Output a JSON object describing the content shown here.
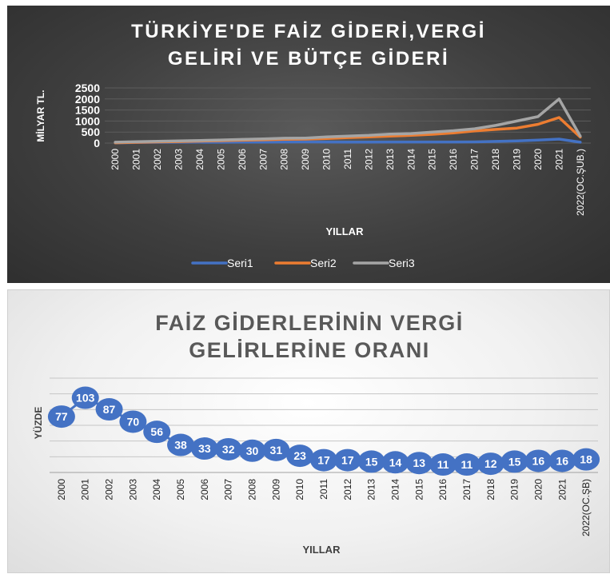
{
  "chart_data": [
    {
      "type": "line",
      "title_lines": [
        "TÜRKİYE'DE FAİZ GİDERİ,VERGİ",
        "GELİRİ VE BÜTÇE GİDERİ"
      ],
      "xlabel": "YILLAR",
      "ylabel": "MİLYAR TL.",
      "ylim": [
        0,
        2500
      ],
      "yticks": [
        "0",
        "500",
        "1000",
        "1500",
        "2000",
        "2500"
      ],
      "categories": [
        "2000",
        "2001",
        "2002",
        "2003",
        "2004",
        "2005",
        "2006",
        "2007",
        "2008",
        "2009",
        "2010",
        "2011",
        "2012",
        "2013",
        "2014",
        "2015",
        "2016",
        "2017",
        "2018",
        "2019",
        "2020",
        "2021",
        "2022(OC.ŞUB.)"
      ],
      "legend_position": "bottom",
      "series": [
        {
          "name": "Seri1",
          "color": "#4472c4",
          "values": [
            10,
            25,
            35,
            40,
            45,
            40,
            45,
            48,
            50,
            55,
            50,
            45,
            48,
            50,
            50,
            52,
            50,
            55,
            75,
            100,
            135,
            180,
            40
          ]
        },
        {
          "name": "Seri2",
          "color": "#ed7d31",
          "values": [
            15,
            35,
            55,
            70,
            90,
            110,
            130,
            150,
            170,
            180,
            210,
            250,
            280,
            320,
            350,
            400,
            460,
            550,
            620,
            680,
            850,
            1160,
            270
          ]
        },
        {
          "name": "Seri3",
          "color": "#a5a5a5",
          "values": [
            40,
            60,
            80,
            100,
            120,
            140,
            165,
            190,
            220,
            230,
            280,
            320,
            350,
            410,
            430,
            500,
            560,
            650,
            800,
            1000,
            1200,
            2000,
            320
          ]
        }
      ]
    },
    {
      "type": "line",
      "title_lines": [
        "FAİZ GİDERLERİNİN VERGİ",
        "GELİRLERİNE ORANI"
      ],
      "xlabel": "YILLAR",
      "ylabel": "YÜZDE",
      "ylim": [
        0,
        130
      ],
      "categories": [
        "2000",
        "2001",
        "2002",
        "2003",
        "2004",
        "2005",
        "2006",
        "2007",
        "2008",
        "2009",
        "2010",
        "2011",
        "2012",
        "2013",
        "2014",
        "2015",
        "2016",
        "2017",
        "2018",
        "2019",
        "2020",
        "2021",
        "2022(OC.ŞB)"
      ],
      "series": [
        {
          "color": "#4472c4",
          "values": [
            77,
            103,
            87,
            70,
            56,
            38,
            33,
            32,
            30,
            31,
            23,
            17,
            17,
            15,
            14,
            13,
            11,
            11,
            12,
            15,
            16,
            16,
            18
          ]
        }
      ]
    }
  ]
}
